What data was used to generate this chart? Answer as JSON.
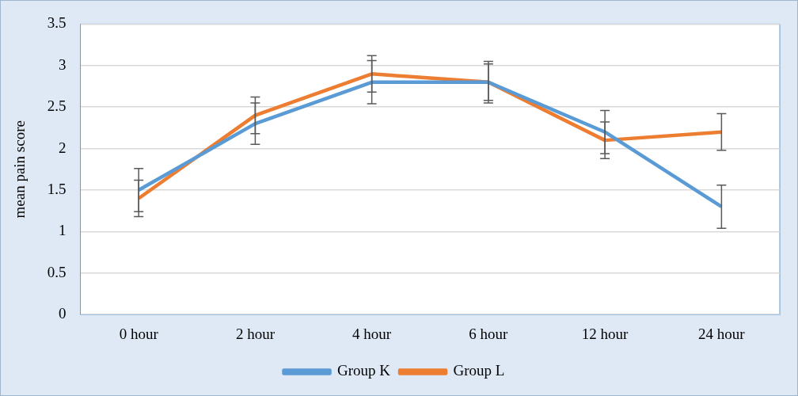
{
  "chart_data": {
    "type": "line",
    "ylabel": "mean pain score",
    "categories": [
      "0 hour",
      "2 hour",
      "4 hour",
      "6 hour",
      "12 hour",
      "24 hour"
    ],
    "series": [
      {
        "name": "Group K",
        "color": "#5b9bd5",
        "values": [
          1.5,
          2.3,
          2.8,
          2.8,
          2.2,
          1.3
        ],
        "errors": [
          0.26,
          0.25,
          0.26,
          0.25,
          0.26,
          0.26
        ]
      },
      {
        "name": "Group L",
        "color": "#ed7d31",
        "values": [
          1.4,
          2.4,
          2.9,
          2.8,
          2.1,
          2.2
        ],
        "errors": [
          0.22,
          0.22,
          0.22,
          0.22,
          0.22,
          0.22
        ]
      }
    ],
    "ylim": [
      0,
      3.5
    ],
    "yticks": [
      0,
      0.5,
      1,
      1.5,
      2,
      2.5,
      3,
      3.5
    ],
    "grid": "y",
    "legend": "bottom",
    "marker": "none",
    "line_style": "solid"
  }
}
